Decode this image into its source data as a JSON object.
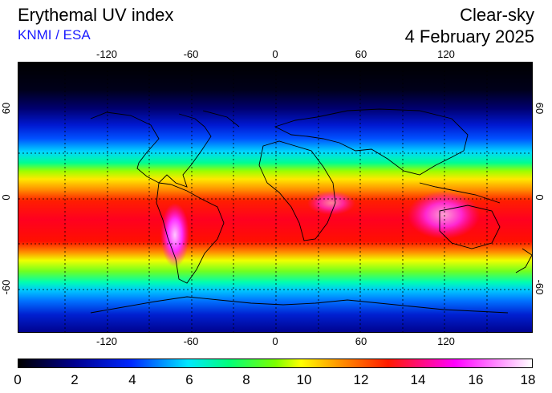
{
  "header": {
    "title": "Erythemal UV index",
    "source": "KNMI / ESA",
    "mode": "Clear-sky",
    "date": "4 February 2025"
  },
  "map": {
    "longitude_labels": [
      "-120",
      "-60",
      "0",
      "60",
      "120"
    ],
    "latitude_labels": [
      "60",
      "0",
      "-60"
    ],
    "grid_style": "dotted"
  },
  "colorbar": {
    "tick_labels": [
      "0",
      "2",
      "4",
      "6",
      "8",
      "10",
      "12",
      "14",
      "16",
      "18"
    ],
    "colors": [
      "#000000",
      "#000090",
      "#0028ff",
      "#00e8ff",
      "#00ff7a",
      "#7aff00",
      "#ffff00",
      "#ff9a00",
      "#ff1a00",
      "#ff00ff",
      "#ffffff"
    ]
  }
}
